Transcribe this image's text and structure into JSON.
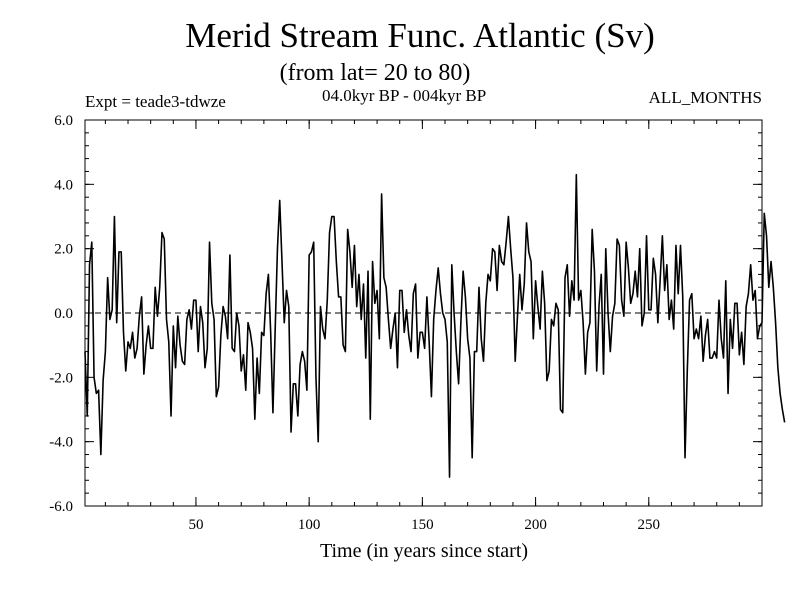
{
  "chart_data": {
    "type": "line",
    "title": "Merid Stream Func. Atlantic (Sv)",
    "subtitle": "(from lat= 20 to 80)",
    "experiment": "Expt = teade3-tdwze",
    "period": "04.0kyr BP - 004kyr BP",
    "season": "ALL_MONTHS",
    "xlabel": "Time (in years since start)",
    "ylabel": "",
    "xlim": [
      1,
      300
    ],
    "ylim": [
      -6,
      6
    ],
    "x_ticks": [
      50,
      100,
      150,
      200,
      250
    ],
    "y_ticks": [
      -6,
      -4,
      -2,
      0,
      2,
      4,
      6
    ],
    "y_tick_labels": [
      "-6.0",
      "-4.0",
      "-2.0",
      "0.0",
      "2.0",
      "4.0",
      "6.0"
    ],
    "reference_line": 0,
    "series": [
      {
        "name": "Merid Stream Func. Atlantic",
        "x_start": 1,
        "x_step": 1,
        "values": [
          -1.2,
          -3.2,
          1.5,
          2.2,
          -2.0,
          -2.5,
          -2.4,
          -4.4,
          -2.1,
          -1.2,
          1.1,
          -0.2,
          0.1,
          3.0,
          -0.3,
          1.9,
          1.9,
          -0.6,
          -1.8,
          -0.9,
          -1.1,
          -0.6,
          -1.4,
          -1.1,
          -0.1,
          0.5,
          -1.9,
          -1.0,
          -0.4,
          -1.1,
          -1.1,
          0.8,
          -0.1,
          0.8,
          2.5,
          2.3,
          -0.2,
          -0.9,
          -3.2,
          -0.4,
          -1.7,
          -0.1,
          -1.0,
          -1.5,
          -1.6,
          -0.2,
          0.1,
          -0.5,
          0.4,
          0.4,
          -1.2,
          0.2,
          -0.3,
          -1.7,
          -1.1,
          2.2,
          0.3,
          -0.2,
          -2.6,
          -2.3,
          -0.7,
          0.2,
          -0.1,
          -0.8,
          1.8,
          -1.1,
          -1.2,
          0.0,
          -0.4,
          -1.8,
          -1.3,
          -2.4,
          -0.3,
          -0.6,
          -1.1,
          -3.3,
          -1.4,
          -2.5,
          -0.6,
          -0.7,
          0.6,
          1.2,
          -0.6,
          -3.1,
          -0.5,
          2.0,
          3.5,
          1.6,
          -0.3,
          0.7,
          0.2,
          -3.7,
          -2.2,
          -2.2,
          -3.2,
          -1.6,
          -1.2,
          -1.5,
          -2.4,
          1.8,
          1.9,
          2.2,
          -2.0,
          -4.0,
          0.2,
          -0.5,
          -0.8,
          0.4,
          2.5,
          3.0,
          3.0,
          1.6,
          0.5,
          0.5,
          -1.0,
          -1.2,
          2.6,
          1.9,
          0.8,
          2.1,
          0.2,
          1.2,
          -0.2,
          0.9,
          -1.4,
          1.3,
          -3.3,
          1.6,
          0.3,
          0.7,
          -0.8,
          3.7,
          1.1,
          0.8,
          -0.2,
          -1.1,
          -0.5,
          0.0,
          -1.7,
          0.7,
          0.7,
          -0.6,
          0.1,
          -0.7,
          -1.2,
          0.6,
          0.9,
          -1.4,
          -0.6,
          -0.6,
          -1.1,
          0.5,
          -0.9,
          -2.6,
          -0.2,
          0.7,
          1.4,
          0.6,
          0.0,
          -0.2,
          -0.9,
          -5.1,
          1.5,
          0.0,
          -1.2,
          -2.2,
          -0.3,
          1.3,
          0.5,
          -0.8,
          -1.4,
          -4.5,
          -1.2,
          -1.2,
          0.8,
          -0.8,
          -1.5,
          0.3,
          1.2,
          1.0,
          2.0,
          1.9,
          0.7,
          2.1,
          1.6,
          1.5,
          2.2,
          3.0,
          2.0,
          1.1,
          -1.5,
          -0.1,
          1.2,
          0.1,
          0.9,
          2.8,
          1.9,
          1.6,
          -0.8,
          1.0,
          0.2,
          -0.5,
          1.3,
          0.3,
          -2.1,
          -1.8,
          -0.2,
          -0.4,
          0.3,
          0.1,
          -3.0,
          -3.1,
          1.1,
          1.5,
          -0.1,
          1.0,
          0.4,
          4.3,
          0.4,
          0.7,
          -0.3,
          -1.9,
          -0.6,
          -0.3,
          2.6,
          1.3,
          -1.8,
          0.2,
          1.2,
          -1.9,
          2.0,
          0.0,
          -1.2,
          -0.1,
          0.3,
          2.3,
          2.1,
          0.4,
          -0.1,
          2.2,
          1.4,
          0.3,
          0.6,
          1.3,
          0.5,
          2.0,
          -0.4,
          0.0,
          2.4,
          0.1,
          0.1,
          1.7,
          1.2,
          -0.3,
          1.0,
          2.4,
          0.7,
          1.5,
          -0.2,
          0.4,
          -0.5,
          2.1,
          0.6,
          2.1,
          0.5,
          -4.5,
          -1.8,
          0.4,
          0.6,
          -0.8,
          -0.5,
          -0.8,
          -0.1,
          -1.5,
          -0.7,
          -0.2,
          -1.4,
          -1.4,
          -1.2,
          -1.4,
          0.4,
          -0.8,
          -1.4,
          1.0,
          -2.5,
          -0.2,
          -1.1,
          0.3,
          0.3,
          -1.3,
          -0.6,
          -1.6,
          0.2,
          0.6,
          1.5,
          0.4,
          0.7,
          -0.8,
          -0.4,
          -0.3,
          3.1,
          2.4,
          0.8,
          1.6,
          0.8,
          -0.3,
          -1.7,
          -2.5,
          -3.0,
          -3.4
        ]
      }
    ]
  }
}
